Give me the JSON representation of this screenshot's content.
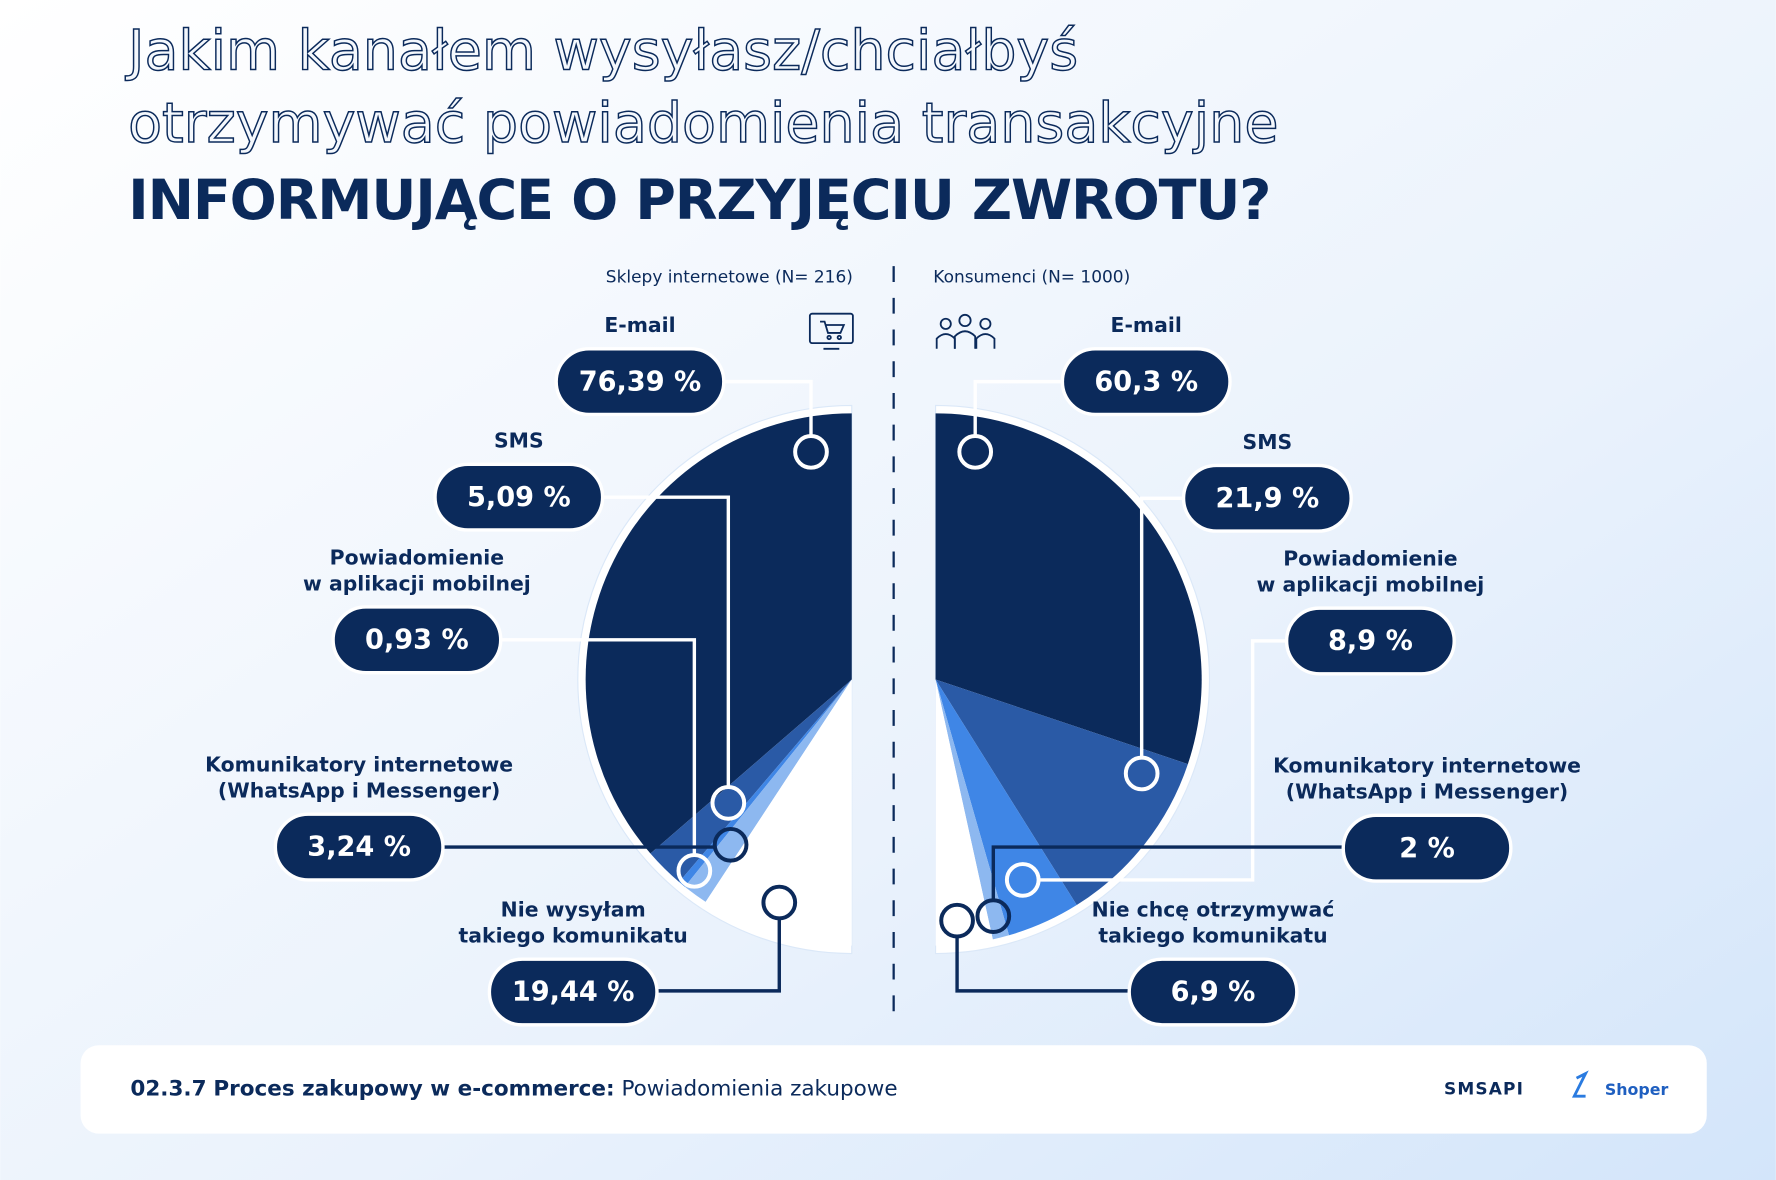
{
  "header": {
    "title": [
      "Jakim kanałem wysyłasz/chciałbyś",
      "otrzymywać powiadomienia transakcyjne",
      "INFORMUJĄCE O PRZYJĘCIU ZWROTU?"
    ]
  },
  "chart_data": [
    {
      "type": "pie",
      "subtitle": "Sklepy internetowe (N= 216)",
      "categories": [
        "E-mail",
        "SMS",
        "Powiadomienie\nw aplikacji mobilnej",
        "Komunikatory internetowe\n(WhatsApp i Messenger)",
        "Nie wysyłam\ntakiego komunikatu"
      ],
      "values": [
        76.39,
        5.09,
        0.93,
        3.24,
        19.44
      ],
      "value_labels": [
        "76,39 %",
        "5,09 %",
        "0,93 %",
        "3,24 %",
        "19,44 %"
      ],
      "colors": [
        "#0b2a5b",
        "#2a5aa6",
        "#3f86e6",
        "#8db8f0",
        "#ffffff"
      ]
    },
    {
      "type": "pie",
      "subtitle": "Konsumenci (N= 1000)",
      "categories": [
        "E-mail",
        "SMS",
        "Powiadomienie\nw aplikacji mobilnej",
        "Komunikatory internetowe\n(WhatsApp i Messenger)",
        "Nie chcę otrzymywać\ntakiego komunikatu"
      ],
      "values": [
        60.3,
        21.9,
        8.9,
        2,
        6.9
      ],
      "value_labels": [
        "60,3 %",
        "21,9 %",
        "8,9 %",
        "2 %",
        "6,9 %"
      ],
      "colors": [
        "#0b2a5b",
        "#2a5aa6",
        "#3f86e6",
        "#8db8f0",
        "#ffffff"
      ]
    }
  ],
  "footer": {
    "code": "02.3.7",
    "section": "Proces zakupowy w e-commerce:",
    "topic": "Powiadomienia zakupowe",
    "logos": [
      "SMSAPI",
      "Shoper"
    ]
  }
}
